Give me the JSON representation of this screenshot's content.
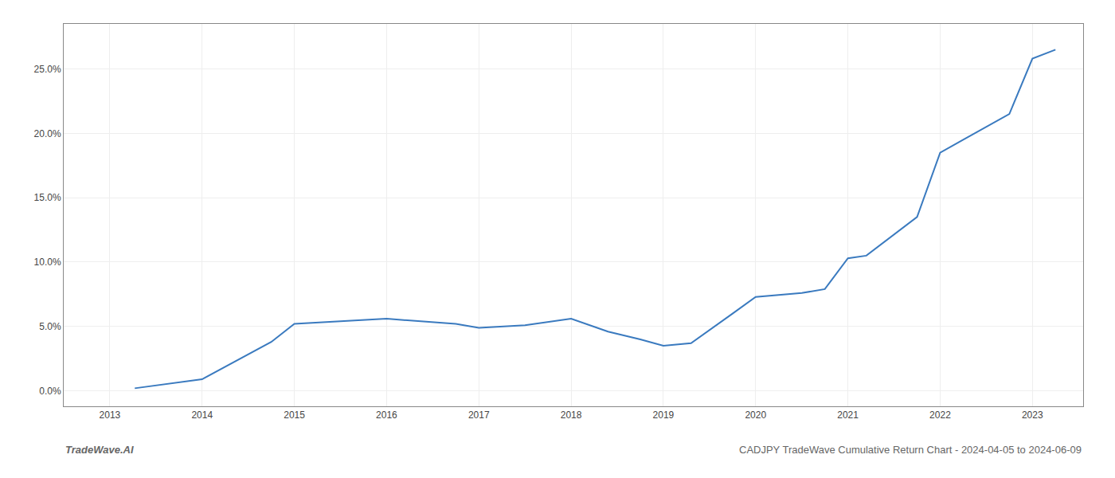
{
  "chart_data": {
    "type": "line",
    "x": [
      2013.27,
      2014.0,
      2014.75,
      2015.0,
      2015.5,
      2016.0,
      2016.75,
      2017.0,
      2017.5,
      2018.0,
      2018.4,
      2018.75,
      2019.0,
      2019.3,
      2019.75,
      2020.0,
      2020.5,
      2020.75,
      2021.0,
      2021.2,
      2021.75,
      2022.0,
      2022.25,
      2022.75,
      2023.0,
      2023.25
    ],
    "values": [
      0.002,
      0.009,
      0.038,
      0.052,
      0.054,
      0.056,
      0.052,
      0.049,
      0.051,
      0.056,
      0.046,
      0.04,
      0.035,
      0.037,
      0.06,
      0.073,
      0.076,
      0.079,
      0.103,
      0.105,
      0.135,
      0.185,
      0.195,
      0.215,
      0.258,
      0.265
    ],
    "color": "#3a7abf",
    "xlim": [
      2012.5,
      2023.55
    ],
    "xticks": [
      2013,
      2014,
      2015,
      2016,
      2017,
      2018,
      2019,
      2020,
      2021,
      2022,
      2023
    ],
    "ylim": [
      -0.012,
      0.285
    ],
    "yticks": [
      {
        "value": 0.0,
        "label": "0.0%"
      },
      {
        "value": 0.05,
        "label": "5.0%"
      },
      {
        "value": 0.1,
        "label": "10.0%"
      },
      {
        "value": 0.15,
        "label": "15.0%"
      },
      {
        "value": 0.2,
        "label": "20.0%"
      },
      {
        "value": 0.25,
        "label": "25.0%"
      }
    ],
    "grid": true,
    "annotations": [
      "TradeWave.AI",
      "CADJPY TradeWave Cumulative Return Chart - 2024-04-05 to 2024-06-09"
    ]
  }
}
